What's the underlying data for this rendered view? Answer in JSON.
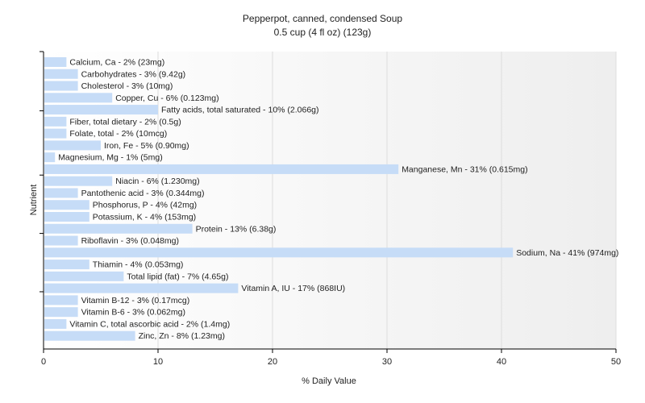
{
  "chart_data": {
    "type": "bar",
    "orientation": "horizontal",
    "title": "Pepperpot, canned, condensed Soup",
    "subtitle": "0.5 cup (4 fl oz) (123g)",
    "xlabel": "% Daily Value",
    "ylabel": "Nutrient",
    "xlim": [
      0,
      50
    ],
    "xticks": [
      0,
      10,
      20,
      30,
      40,
      50
    ],
    "grid": true,
    "bar_color": "#c6dcf7",
    "categories": [
      "Calcium, Ca",
      "Carbohydrates",
      "Cholesterol",
      "Copper, Cu",
      "Fatty acids, total saturated",
      "Fiber, total dietary",
      "Folate, total",
      "Iron, Fe",
      "Magnesium, Mg",
      "Manganese, Mn",
      "Niacin",
      "Pantothenic acid",
      "Phosphorus, P",
      "Potassium, K",
      "Protein",
      "Riboflavin",
      "Sodium, Na",
      "Thiamin",
      "Total lipid (fat)",
      "Vitamin A, IU",
      "Vitamin B-12",
      "Vitamin B-6",
      "Vitamin C, total ascorbic acid",
      "Zinc, Zn"
    ],
    "values": [
      2,
      3,
      3,
      6,
      10,
      2,
      2,
      5,
      1,
      31,
      6,
      3,
      4,
      4,
      13,
      3,
      41,
      4,
      7,
      17,
      3,
      3,
      2,
      8
    ],
    "labels": [
      "Calcium, Ca - 2% (23mg)",
      "Carbohydrates - 3% (9.42g)",
      "Cholesterol - 3% (10mg)",
      "Copper, Cu - 6% (0.123mg)",
      "Fatty acids, total saturated - 10% (2.066g)",
      "Fiber, total dietary - 2% (0.5g)",
      "Folate, total - 2% (10mcg)",
      "Iron, Fe - 5% (0.90mg)",
      "Magnesium, Mg - 1% (5mg)",
      "Manganese, Mn - 31% (0.615mg)",
      "Niacin - 6% (1.230mg)",
      "Pantothenic acid - 3% (0.344mg)",
      "Phosphorus, P - 4% (42mg)",
      "Potassium, K - 4% (153mg)",
      "Protein - 13% (6.38g)",
      "Riboflavin - 3% (0.048mg)",
      "Sodium, Na - 41% (974mg)",
      "Thiamin - 4% (0.053mg)",
      "Total lipid (fat) - 7% (4.65g)",
      "Vitamin A, IU - 17% (868IU)",
      "Vitamin B-12 - 3% (0.17mcg)",
      "Vitamin B-6 - 3% (0.062mg)",
      "Vitamin C, total ascorbic acid - 2% (1.4mg)",
      "Zinc, Zn - 8% (1.23mg)"
    ]
  }
}
